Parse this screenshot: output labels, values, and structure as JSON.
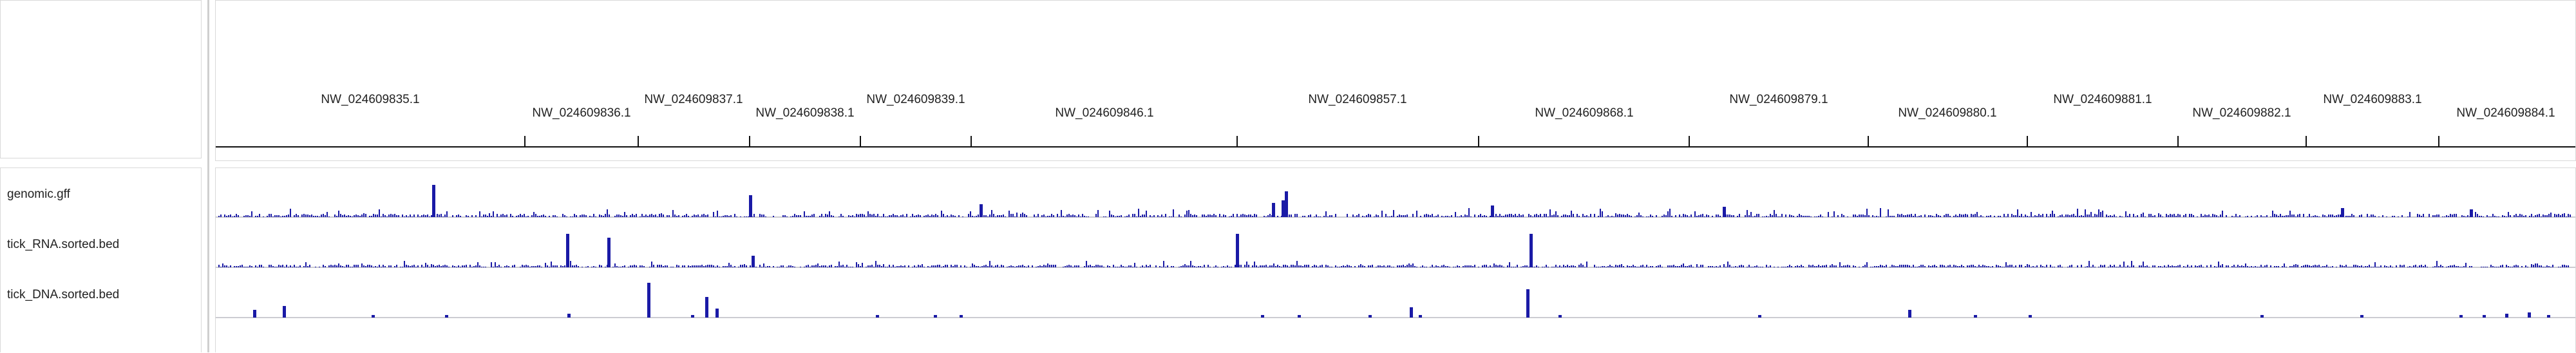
{
  "tracks": {
    "genomic": "genomic.gff",
    "rna": "tick_RNA.sorted.bed",
    "dna": "tick_DNA.sorted.bed"
  },
  "contigs": [
    "NW_024609835.1",
    "NW_024609836.1",
    "NW_024609837.1",
    "NW_024609838.1",
    "NW_024609839.1",
    "NW_024609846.1",
    "NW_024609857.1",
    "NW_024609868.1",
    "NW_024609879.1",
    "NW_024609880.1",
    "NW_024609881.1",
    "NW_024609882.1",
    "NW_024609883.1",
    "NW_024609884.1"
  ],
  "colors": {
    "bar": "#1a1aa6",
    "baseline": "#9a9aa6",
    "divider": "#cfcfcf"
  }
}
